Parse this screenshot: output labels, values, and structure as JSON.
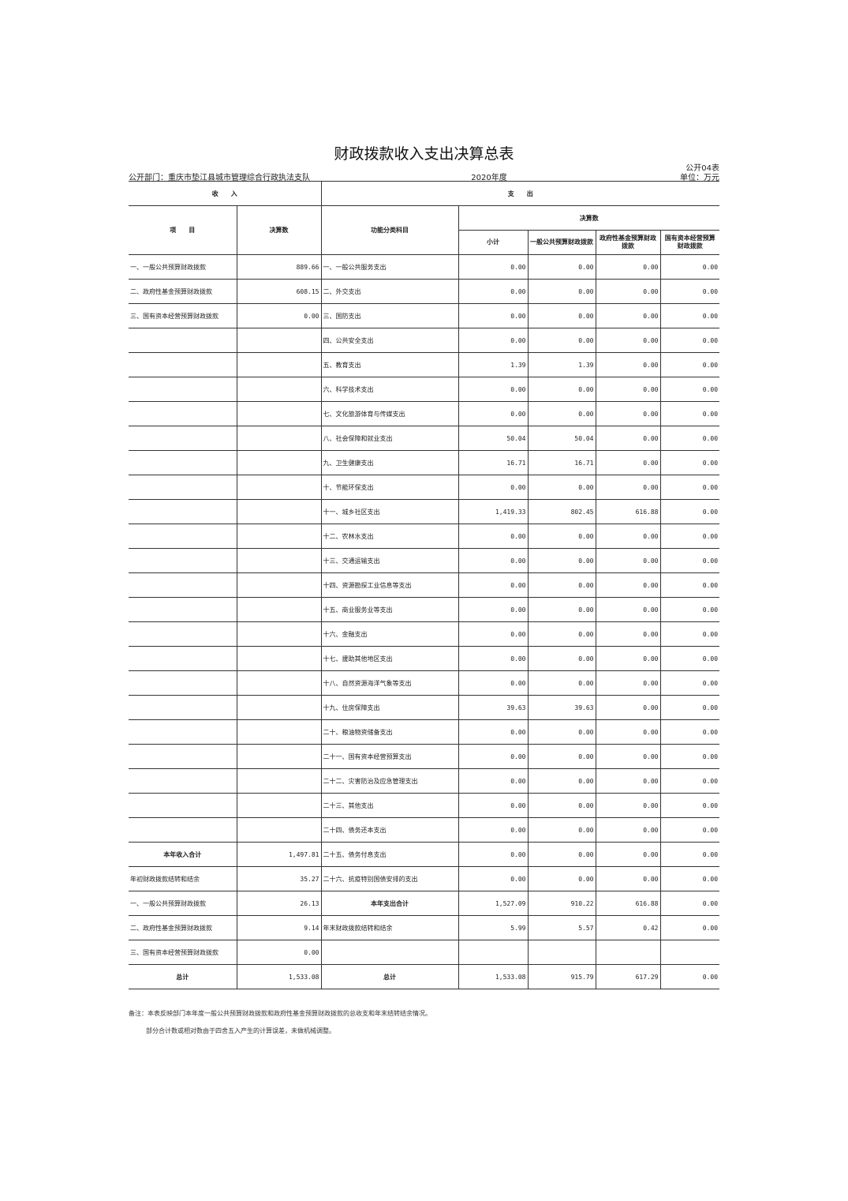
{
  "title": "财政拨款收入支出决算总表",
  "table_no": "公开04表",
  "department": "公开部门：重庆市垫江县城市管理综合行政执法支队",
  "year": "2020年度",
  "unit": "单位：万元",
  "headers": {
    "income": "收　　入",
    "expense": "支　　出",
    "item": "项　　目",
    "amount": "决算数",
    "func_class": "功能分类科目",
    "final_amount": "决算数",
    "subtotal": "小计",
    "general_budget": "一般公共预算财政拨款",
    "gov_fund": "政府性基金预算财政拨款",
    "state_capital": "国有资本经营预算财政拨款"
  },
  "rows": [
    {
      "inc": "一、一般公共预算财政拨款",
      "incv": "889.66",
      "exp": "一、一般公共服务支出",
      "v": [
        "0.00",
        "0.00",
        "0.00",
        "0.00"
      ]
    },
    {
      "inc": "二、政府性基金预算财政拨款",
      "incv": "608.15",
      "exp": "二、外交支出",
      "v": [
        "0.00",
        "0.00",
        "0.00",
        "0.00"
      ]
    },
    {
      "inc": "三、国有资本经营预算财政拨款",
      "incv": "0.00",
      "exp": "三、国防支出",
      "v": [
        "0.00",
        "0.00",
        "0.00",
        "0.00"
      ]
    },
    {
      "inc": "",
      "incv": "",
      "exp": "四、公共安全支出",
      "v": [
        "0.00",
        "0.00",
        "0.00",
        "0.00"
      ]
    },
    {
      "inc": "",
      "incv": "",
      "exp": "五、教育支出",
      "v": [
        "1.39",
        "1.39",
        "0.00",
        "0.00"
      ]
    },
    {
      "inc": "",
      "incv": "",
      "exp": "六、科学技术支出",
      "v": [
        "0.00",
        "0.00",
        "0.00",
        "0.00"
      ]
    },
    {
      "inc": "",
      "incv": "",
      "exp": "七、文化旅游体育与传媒支出",
      "v": [
        "0.00",
        "0.00",
        "0.00",
        "0.00"
      ]
    },
    {
      "inc": "",
      "incv": "",
      "exp": "八、社会保障和就业支出",
      "v": [
        "50.04",
        "50.04",
        "0.00",
        "0.00"
      ]
    },
    {
      "inc": "",
      "incv": "",
      "exp": "九、卫生健康支出",
      "v": [
        "16.71",
        "16.71",
        "0.00",
        "0.00"
      ]
    },
    {
      "inc": "",
      "incv": "",
      "exp": "十、节能环保支出",
      "v": [
        "0.00",
        "0.00",
        "0.00",
        "0.00"
      ]
    },
    {
      "inc": "",
      "incv": "",
      "exp": "十一、城乡社区支出",
      "v": [
        "1,419.33",
        "802.45",
        "616.88",
        "0.00"
      ]
    },
    {
      "inc": "",
      "incv": "",
      "exp": "十二、农林水支出",
      "v": [
        "0.00",
        "0.00",
        "0.00",
        "0.00"
      ]
    },
    {
      "inc": "",
      "incv": "",
      "exp": "十三、交通运输支出",
      "v": [
        "0.00",
        "0.00",
        "0.00",
        "0.00"
      ]
    },
    {
      "inc": "",
      "incv": "",
      "exp": "十四、资源勘探工业信息等支出",
      "v": [
        "0.00",
        "0.00",
        "0.00",
        "0.00"
      ]
    },
    {
      "inc": "",
      "incv": "",
      "exp": "十五、商业服务业等支出",
      "v": [
        "0.00",
        "0.00",
        "0.00",
        "0.00"
      ]
    },
    {
      "inc": "",
      "incv": "",
      "exp": "十六、金融支出",
      "v": [
        "0.00",
        "0.00",
        "0.00",
        "0.00"
      ]
    },
    {
      "inc": "",
      "incv": "",
      "exp": "十七、援助其他地区支出",
      "v": [
        "0.00",
        "0.00",
        "0.00",
        "0.00"
      ]
    },
    {
      "inc": "",
      "incv": "",
      "exp": "十八、自然资源海洋气象等支出",
      "v": [
        "0.00",
        "0.00",
        "0.00",
        "0.00"
      ]
    },
    {
      "inc": "",
      "incv": "",
      "exp": "十九、住房保障支出",
      "v": [
        "39.63",
        "39.63",
        "0.00",
        "0.00"
      ]
    },
    {
      "inc": "",
      "incv": "",
      "exp": "二十、粮油物资储备支出",
      "v": [
        "0.00",
        "0.00",
        "0.00",
        "0.00"
      ]
    },
    {
      "inc": "",
      "incv": "",
      "exp": "二十一、国有资本经营预算支出",
      "v": [
        "0.00",
        "0.00",
        "0.00",
        "0.00"
      ]
    },
    {
      "inc": "",
      "incv": "",
      "exp": "二十二、灾害防治及应急管理支出",
      "v": [
        "0.00",
        "0.00",
        "0.00",
        "0.00"
      ]
    },
    {
      "inc": "",
      "incv": "",
      "exp": "二十三、其他支出",
      "v": [
        "0.00",
        "0.00",
        "0.00",
        "0.00"
      ]
    },
    {
      "inc": "",
      "incv": "",
      "exp": "二十四、债务还本支出",
      "v": [
        "0.00",
        "0.00",
        "0.00",
        "0.00"
      ]
    },
    {
      "inc": "本年收入合计",
      "incv": "1,497.81",
      "exp": "二十五、债务付息支出",
      "v": [
        "0.00",
        "0.00",
        "0.00",
        "0.00"
      ],
      "incBold": true
    },
    {
      "inc": "年初财政拨款结转和结余",
      "incv": "35.27",
      "exp": "二十六、抗疫特别国债安排的支出",
      "v": [
        "0.00",
        "0.00",
        "0.00",
        "0.00"
      ]
    },
    {
      "inc": "一、一般公共预算财政拨款",
      "incv": "26.13",
      "exp": "本年支出合计",
      "v": [
        "1,527.09",
        "910.22",
        "616.88",
        "0.00"
      ],
      "expBold": true
    },
    {
      "inc": "二、政府性基金预算财政拨款",
      "incv": "9.14",
      "exp": "年末财政拨款结转和结余",
      "v": [
        "5.99",
        "5.57",
        "0.42",
        "0.00"
      ]
    },
    {
      "inc": "三、国有资本经营预算财政拨款",
      "incv": "0.00",
      "exp": "",
      "v": [
        "",
        "",
        "",
        ""
      ]
    },
    {
      "inc": "总计",
      "incv": "1,533.08",
      "exp": "总计",
      "v": [
        "1,533.08",
        "915.79",
        "617.29",
        "0.00"
      ],
      "incBold": true,
      "expBold": true
    }
  ],
  "notes": [
    "备注：本表反映部门本年度一般公共预算财政拨款和政府性基金预算财政拨款的总收支和年末结转结余情况。",
    "部分合计数或相对数由于四舍五入产生的计算误差，未做机械调整。"
  ]
}
